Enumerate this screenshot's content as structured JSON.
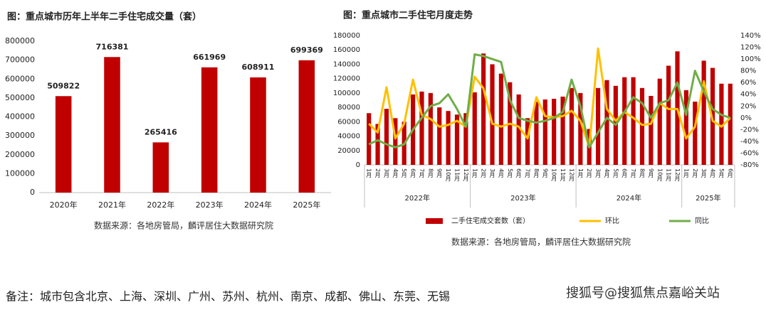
{
  "chart_data": [
    {
      "type": "bar",
      "title": "图：重点城市历年上半年二手住宅成交量（套）",
      "categories": [
        "2020年",
        "2021年",
        "2022年",
        "2023年",
        "2024年",
        "2025年"
      ],
      "values": [
        509822,
        716381,
        265416,
        661969,
        608911,
        699369
      ],
      "color": "#c00000",
      "ylim": [
        0,
        800000
      ],
      "yticks": [
        0,
        100000,
        200000,
        300000,
        400000,
        500000,
        600000,
        700000,
        800000
      ],
      "source": "数据来源：各地房管局，麟评居住大数据研究院"
    },
    {
      "type": "combo",
      "title": "图：重点城市二手住宅月度走势",
      "categories": [
        "1月",
        "2月",
        "3月",
        "4月",
        "5月",
        "6月",
        "7月",
        "8月",
        "9月",
        "10月",
        "11月",
        "12月",
        "1月",
        "2月",
        "3月",
        "4月",
        "5月",
        "6月",
        "7月",
        "8月",
        "9月",
        "10月",
        "11月",
        "12月",
        "1月",
        "2月",
        "3月",
        "4月",
        "5月",
        "6月",
        "7月",
        "8月",
        "9月",
        "10月",
        "11月",
        "12月",
        "1月",
        "2月",
        "3月",
        "4月",
        "5月",
        "6月"
      ],
      "year_groups": [
        "2022年",
        "2023年",
        "2024年",
        "2025年"
      ],
      "series": [
        {
          "name": "二手住宅成交套数（套）",
          "type": "bar",
          "color": "#c00000",
          "values": [
            72000,
            57000,
            78000,
            65000,
            60000,
            98000,
            102000,
            100000,
            80000,
            75000,
            70000,
            72000,
            101000,
            155000,
            140000,
            127000,
            115000,
            98000,
            65000,
            88000,
            91000,
            92000,
            95000,
            107000,
            100000,
            50000,
            107000,
            118000,
            110000,
            122000,
            122000,
            107000,
            96000,
            120000,
            138000,
            158000,
            104000,
            88000,
            145000,
            135000,
            113000,
            113000
          ]
        },
        {
          "name": "环比",
          "type": "line",
          "axis": "y2",
          "color": "#ffc000",
          "values": [
            -10,
            -25,
            52,
            -35,
            -10,
            65,
            5,
            -2,
            -15,
            -12,
            -5,
            -15,
            70,
            50,
            -10,
            -15,
            -10,
            -15,
            -35,
            35,
            3,
            1,
            3,
            12,
            -5,
            -50,
            118,
            15,
            -5,
            10,
            0,
            -12,
            -10,
            25,
            15,
            15,
            -35,
            -15,
            62,
            -5,
            -15,
            0
          ]
        },
        {
          "name": "同比",
          "type": "line",
          "axis": "y2",
          "color": "#70ad47",
          "values": [
            -45,
            -38,
            -45,
            -50,
            -45,
            -20,
            0,
            20,
            25,
            40,
            15,
            -15,
            108,
            105,
            100,
            95,
            30,
            0,
            -5,
            -8,
            -5,
            0,
            10,
            65,
            20,
            -50,
            -25,
            0,
            -12,
            10,
            35,
            25,
            0,
            25,
            30,
            60,
            5,
            80,
            45,
            15,
            5,
            0
          ]
        }
      ],
      "ylim": [
        0,
        180000
      ],
      "yticks": [
        0,
        20000,
        40000,
        60000,
        80000,
        100000,
        120000,
        140000,
        160000,
        180000
      ],
      "y2lim": [
        -80,
        140
      ],
      "y2ticks": [
        {
          "value": -80,
          "label": "-80%"
        },
        {
          "value": -60,
          "label": "-60%"
        },
        {
          "value": -40,
          "label": "-40%"
        },
        {
          "value": -20,
          "label": "-20%"
        },
        {
          "value": 0,
          "label": "0%"
        },
        {
          "value": 20,
          "label": "20%"
        },
        {
          "value": 40,
          "label": "40%"
        },
        {
          "value": 60,
          "label": "60%"
        },
        {
          "value": 80,
          "label": "80%"
        },
        {
          "value": 100,
          "label": "100%"
        },
        {
          "value": 120,
          "label": "120%"
        },
        {
          "value": 140,
          "label": "140%"
        }
      ],
      "source": "数据来源：各地房管局，麟评居住大数据研究院"
    }
  ],
  "note": "备注：城市包含北京、上海、深圳、广州、苏州、杭州、南京、成都、佛山、东莞、无锡",
  "watermark": "搜狐号@搜狐焦点嘉峪关站"
}
